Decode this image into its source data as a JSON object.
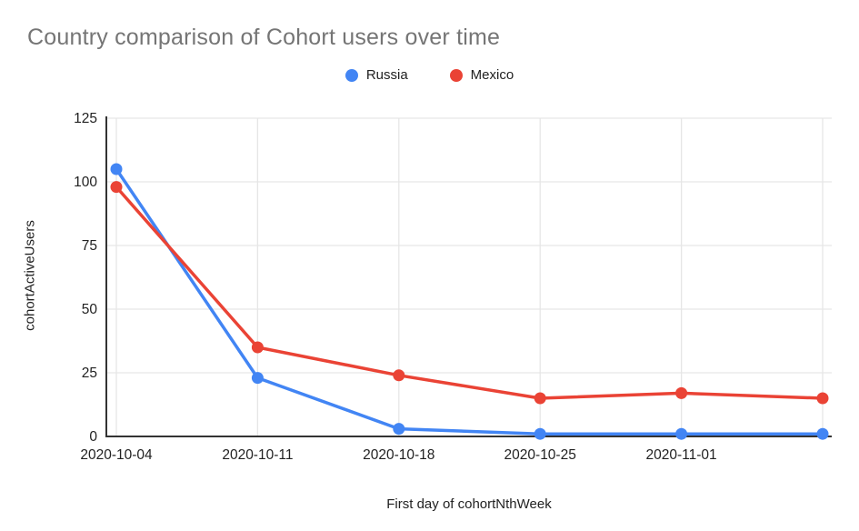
{
  "chart_data": {
    "type": "line",
    "title": "Country comparison of Cohort users over time",
    "xlabel": "First day of cohortNthWeek",
    "ylabel": "cohortActiveUsers",
    "categories": [
      "2020-10-04",
      "2020-10-11",
      "2020-10-18",
      "2020-10-25",
      "2020-11-01",
      ""
    ],
    "series": [
      {
        "name": "Russia",
        "color": "#4285F4",
        "values": [
          105,
          23,
          3,
          1,
          1,
          1
        ]
      },
      {
        "name": "Mexico",
        "color": "#EA4335",
        "values": [
          98,
          35,
          24,
          15,
          17,
          15
        ]
      }
    ],
    "ylim": [
      0,
      125
    ],
    "yticks": [
      0,
      25,
      50,
      75,
      100,
      125
    ],
    "grid": true,
    "legend_position": "top",
    "colors": {
      "title_text": "#757575",
      "tick_text": "#222222",
      "gridline": "#e6e6e6",
      "axis_line": "#333333",
      "background": "#ffffff"
    }
  }
}
